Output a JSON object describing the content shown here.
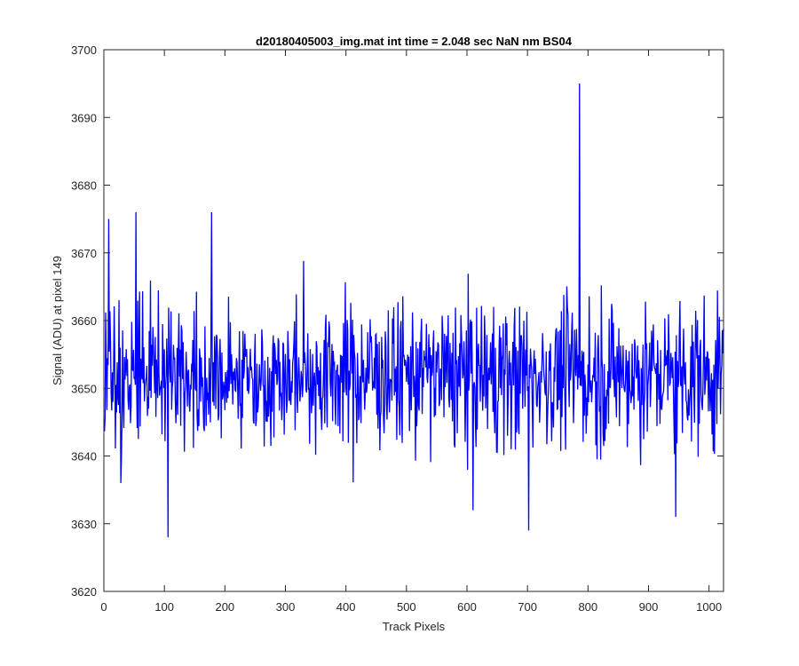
{
  "chart_data": {
    "type": "line",
    "title": "d20180405003_img.mat int time = 2.048 sec  NaN nm BS04",
    "xlabel": "Track Pixels",
    "ylabel": "Signal (ADU) at pixel 149",
    "xlim": [
      0,
      1024
    ],
    "ylim": [
      3620,
      3700
    ],
    "xticks": [
      0,
      100,
      200,
      300,
      400,
      500,
      600,
      700,
      800,
      900,
      1000
    ],
    "yticks": [
      3620,
      3630,
      3640,
      3650,
      3660,
      3670,
      3680,
      3690,
      3700
    ],
    "grid": false,
    "series": [
      {
        "color": "#0000ff",
        "x_start": 1,
        "x_step": 1,
        "n_points": 1024,
        "mean": 3652,
        "notable_points": [
          {
            "x": 786,
            "y": 3695
          },
          {
            "x": 106,
            "y": 3628
          },
          {
            "x": 702,
            "y": 3629
          },
          {
            "x": 945,
            "y": 3631
          },
          {
            "x": 8,
            "y": 3675
          },
          {
            "x": 53,
            "y": 3676
          },
          {
            "x": 178,
            "y": 3676
          },
          {
            "x": 28,
            "y": 3636
          },
          {
            "x": 610,
            "y": 3632
          }
        ]
      }
    ]
  }
}
